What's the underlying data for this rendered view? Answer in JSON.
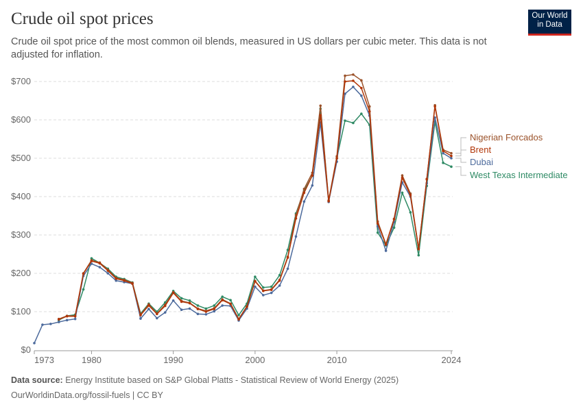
{
  "header": {
    "title": "Crude oil spot prices",
    "subtitle": "Crude oil spot price of the most common oil blends, measured in US dollars per cubic meter. This data is not adjusted for inflation.",
    "logo": "Our World in Data"
  },
  "footer": {
    "source_label": "Data source:",
    "source": "Energy Institute based on S&P Global Platts - Statistical Review of World Energy (2025)",
    "url": "OurWorldinData.org/fossil-fuels | CC BY"
  },
  "chart_data": {
    "type": "line",
    "title": "Crude oil spot prices",
    "xlim": [
      1973,
      2024
    ],
    "ylim": [
      0,
      700
    ],
    "grid": true,
    "legend": "right",
    "x_ticks": [
      "1973",
      "1980",
      "1990",
      "2000",
      "2010",
      "2024"
    ],
    "y_ticks": [
      "$0",
      "$100",
      "$200",
      "$300",
      "$400",
      "$500",
      "$600",
      "$700"
    ],
    "series": [
      {
        "name": "Nigerian Forcados",
        "color": "#9a5129",
        "start": 1976,
        "values": [
          81,
          89,
          89,
          200,
          234,
          228,
          209,
          188,
          183,
          175,
          92,
          119,
          95,
          118,
          151,
          128,
          123,
          108,
          102,
          109,
          132,
          121,
          81,
          114,
          180,
          155,
          158,
          183,
          243,
          352,
          420,
          462,
          637,
          390,
          505,
          715,
          718,
          703,
          635,
          335,
          276,
          342,
          455,
          408,
          265,
          445,
          638,
          522,
          513
        ]
      },
      {
        "name": "Brent",
        "color": "#b13507",
        "start": 1976,
        "values": [
          80,
          88,
          88,
          199,
          232,
          226,
          207,
          186,
          181,
          173,
          91,
          116,
          94,
          115,
          149,
          126,
          122,
          107,
          100,
          107,
          130,
          120,
          80,
          113,
          179,
          154,
          157,
          181,
          241,
          343,
          410,
          455,
          612,
          388,
          500,
          700,
          702,
          683,
          622,
          330,
          275,
          341,
          449,
          404,
          263,
          446,
          635,
          519,
          506
        ]
      },
      {
        "name": "Dubai",
        "color": "#4c6a9c",
        "start": 1973,
        "values": [
          18,
          66,
          68,
          73,
          78,
          81,
          193,
          225,
          216,
          200,
          181,
          177,
          173,
          82,
          107,
          83,
          98,
          129,
          105,
          108,
          94,
          93,
          101,
          116,
          115,
          77,
          108,
          165,
          143,
          149,
          168,
          212,
          296,
          387,
          429,
          593,
          386,
          491,
          668,
          686,
          663,
          611,
          322,
          259,
          334,
          437,
          400,
          265,
          435,
          606,
          513,
          500
        ]
      },
      {
        "name": "West Texas Intermediate",
        "color": "#2e8a64",
        "start": 1976,
        "values": [
          78,
          89,
          92,
          158,
          239,
          227,
          212,
          191,
          185,
          176,
          95,
          121,
          100,
          124,
          154,
          135,
          129,
          116,
          108,
          116,
          139,
          130,
          91,
          121,
          191,
          163,
          165,
          195,
          261,
          356,
          415,
          454,
          629,
          389,
          500,
          598,
          592,
          616,
          587,
          306,
          273,
          319,
          410,
          359,
          247,
          428,
          595,
          488,
          478
        ]
      }
    ]
  }
}
